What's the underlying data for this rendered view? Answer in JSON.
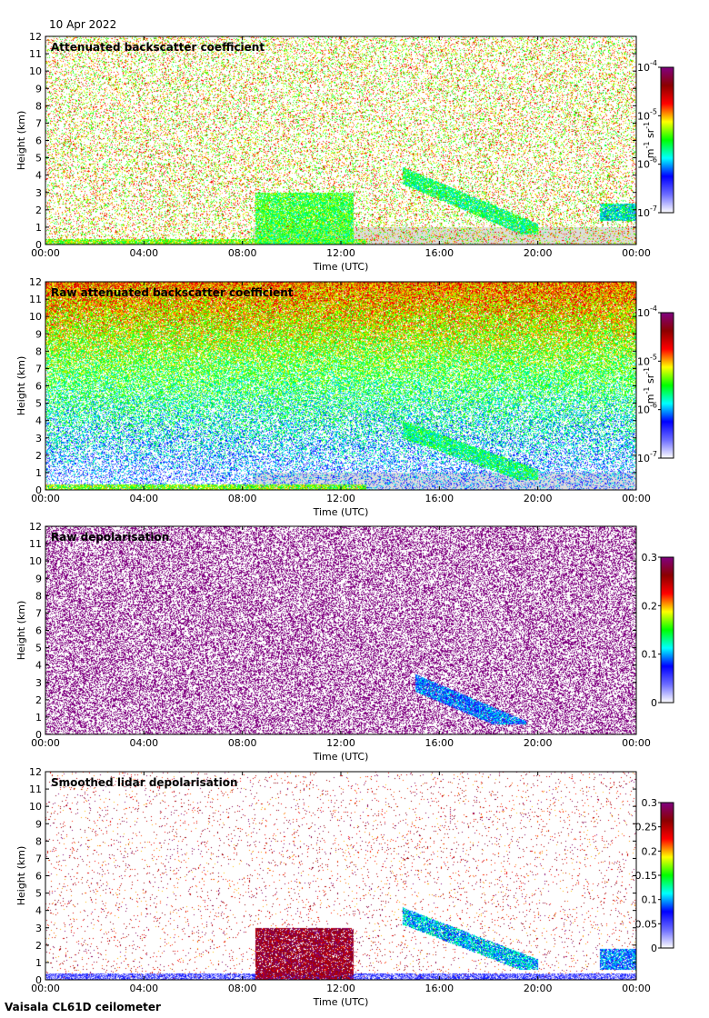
{
  "date": "10 Apr 2022",
  "footer": "Vaisala CL61D ceilometer",
  "chart_data": [
    {
      "type": "heatmap",
      "title": "Attenuated backscatter coefficient",
      "xlabel": "Time (UTC)",
      "ylabel": "Height (km)",
      "xticks": [
        "00:00",
        "04:00",
        "08:00",
        "12:00",
        "16:00",
        "20:00",
        "00:00"
      ],
      "xlim_hours": [
        0,
        24
      ],
      "ylim_km": [
        0,
        12
      ],
      "yticks": [
        0,
        1,
        2,
        3,
        4,
        5,
        6,
        7,
        8,
        9,
        10,
        11,
        12
      ],
      "colorbar": {
        "scale": "log",
        "min": 1e-07,
        "max": 0.0001,
        "ticks": [
          "10",
          "10",
          "10",
          "10"
        ],
        "exponents": [
          "-7",
          "-6",
          "-5",
          "-4"
        ],
        "unit": "m",
        "unit_exp1": "-1",
        "unit2": " sr",
        "unit_exp2": "-1"
      },
      "colormap": [
        "#ffffff",
        "#6c6cff",
        "#0000ff",
        "#00ffff",
        "#00ff00",
        "#ffff00",
        "#ff0000",
        "#8b0000",
        "#800080"
      ],
      "features": [
        {
          "name": "noise",
          "pattern": "sparse_speckle",
          "level": 0.8,
          "density": 0.25
        },
        {
          "name": "surface-layer",
          "t_start": 0,
          "t_end": 13,
          "h_bottom": 0,
          "h_top": 0.35,
          "level": 0.55
        },
        {
          "name": "convective-clouds",
          "t_start": 8.5,
          "t_end": 12.5,
          "h_bottom": 0,
          "h_top": 3.0,
          "level": 0.5
        },
        {
          "name": "cirrus-band",
          "t_start": 14.5,
          "t_end": 20,
          "h_top_start": 4.5,
          "h_top_end": 1.2,
          "level": 0.45
        },
        {
          "name": "late-cloud",
          "t_start": 22.5,
          "t_end": 24,
          "h_bottom": 1.4,
          "h_top": 2.4,
          "level": 0.4
        }
      ]
    },
    {
      "type": "heatmap",
      "title": "Raw attenuated backscatter coefficient",
      "xlabel": "Time (UTC)",
      "ylabel": "Height (km)",
      "xticks": [
        "00:00",
        "04:00",
        "08:00",
        "12:00",
        "16:00",
        "20:00",
        "00:00"
      ],
      "xlim_hours": [
        0,
        24
      ],
      "ylim_km": [
        0,
        12
      ],
      "yticks": [
        0,
        1,
        2,
        3,
        4,
        5,
        6,
        7,
        8,
        9,
        10,
        11,
        12
      ],
      "colorbar": {
        "scale": "log",
        "min": 1e-07,
        "max": 0.0001,
        "ticks": [
          "10",
          "10",
          "10",
          "10"
        ],
        "exponents": [
          "-7",
          "-6",
          "-5",
          "-4"
        ],
        "unit": "m",
        "unit_exp1": "-1",
        "unit2": " sr",
        "unit_exp2": "-1"
      },
      "colormap": [
        "#ffffff",
        "#6c6cff",
        "#0000ff",
        "#00ffff",
        "#00ff00",
        "#ffff00",
        "#ff0000",
        "#8b0000",
        "#800080"
      ],
      "features": [
        {
          "name": "noise",
          "pattern": "dense_noise_increasing_with_height",
          "level": 0.45,
          "density": 1.0
        },
        {
          "name": "surface-layer",
          "t_start": 0,
          "t_end": 13,
          "h_bottom": 0,
          "h_top": 0.35,
          "level": 0.55
        },
        {
          "name": "cirrus-band",
          "t_start": 14.5,
          "t_end": 20,
          "h_top_start": 4.0,
          "h_top_end": 1.2,
          "level": 0.45
        }
      ]
    },
    {
      "type": "heatmap",
      "title": "Raw depolarisation",
      "xlabel": "Time (UTC)",
      "ylabel": "Height (km)",
      "xticks": [
        "00:00",
        "04:00",
        "08:00",
        "12:00",
        "16:00",
        "20:00",
        "00:00"
      ],
      "xlim_hours": [
        0,
        24
      ],
      "ylim_km": [
        0,
        12
      ],
      "yticks": [
        0,
        1,
        2,
        3,
        4,
        5,
        6,
        7,
        8,
        9,
        10,
        11,
        12
      ],
      "colorbar": {
        "scale": "linear",
        "min": 0,
        "max": 0.3,
        "ticks": [
          "0",
          "0.1",
          "0.2",
          "0.3"
        ]
      },
      "colormap": [
        "#ffffff",
        "#6c6cff",
        "#0000ff",
        "#00ffff",
        "#00ff00",
        "#ffff00",
        "#ff0000",
        "#8b0000",
        "#800080"
      ],
      "features": [
        {
          "name": "noise",
          "pattern": "dense_purple_white_noise",
          "level": 1.0,
          "density": 0.6
        },
        {
          "name": "cirrus-band",
          "t_start": 15,
          "t_end": 19.5,
          "h_top_start": 3.5,
          "h_top_end": 0.8,
          "level": 0.3
        }
      ]
    },
    {
      "type": "heatmap",
      "title": "Smoothed lidar depolarisation",
      "xlabel": "Time (UTC)",
      "ylabel": "Height (km)",
      "xticks": [
        "00:00",
        "04:00",
        "08:00",
        "12:00",
        "16:00",
        "20:00",
        "00:00"
      ],
      "xlim_hours": [
        0,
        24
      ],
      "ylim_km": [
        0,
        12
      ],
      "yticks": [
        0,
        1,
        2,
        3,
        4,
        5,
        6,
        7,
        8,
        9,
        10,
        11,
        12
      ],
      "colorbar": {
        "scale": "linear",
        "min": 0,
        "max": 0.3,
        "ticks": [
          "0",
          "0.05",
          "0.1",
          "0.15",
          "0.2",
          "0.25",
          "0.3"
        ]
      },
      "colormap": [
        "#ffffff",
        "#6c6cff",
        "#0000ff",
        "#00ffff",
        "#00ff00",
        "#ffff00",
        "#ff0000",
        "#8b0000",
        "#800080"
      ],
      "features": [
        {
          "name": "noise",
          "pattern": "sparse_purple_speckle",
          "level": 1.0,
          "density": 0.04
        },
        {
          "name": "surface-layer",
          "t_start": 0,
          "t_end": 24,
          "h_bottom": 0,
          "h_top": 0.4,
          "level": 0.15
        },
        {
          "name": "convective-clouds",
          "t_start": 8.5,
          "t_end": 12.5,
          "h_bottom": 0,
          "h_top": 3.0,
          "level": 0.9
        },
        {
          "name": "cirrus-band",
          "t_start": 14.5,
          "t_end": 20,
          "h_top_start": 4.2,
          "h_top_end": 1.2,
          "level": 0.35
        },
        {
          "name": "late-cloud",
          "t_start": 22.5,
          "t_end": 24,
          "h_bottom": 0.6,
          "h_top": 1.8,
          "level": 0.3
        }
      ]
    }
  ]
}
